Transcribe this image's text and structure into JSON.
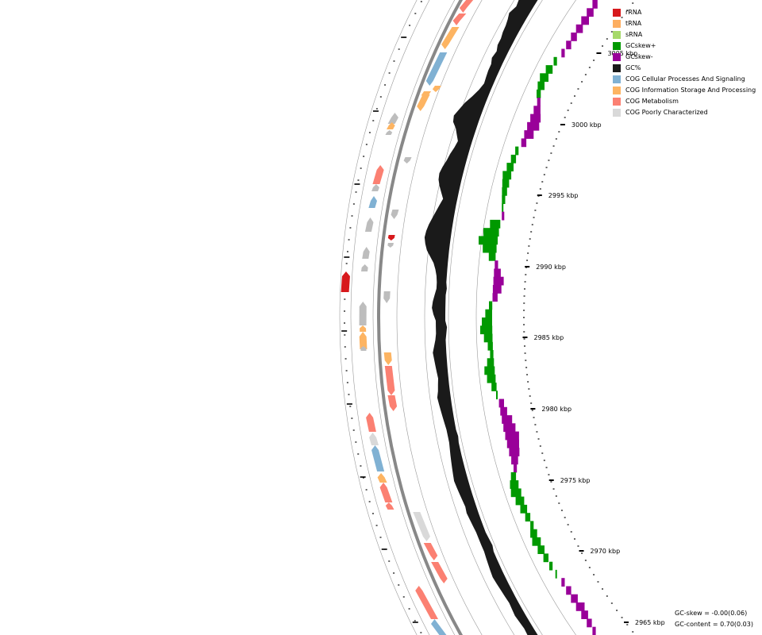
{
  "legend": {
    "items": [
      {
        "label": "rRNA",
        "color": "#d7191c"
      },
      {
        "label": "tRNA",
        "color": "#fdae61"
      },
      {
        "label": "sRNA",
        "color": "#a6d96a"
      },
      {
        "label": "GCskew+",
        "color": "#009900"
      },
      {
        "label": "GCskew-",
        "color": "#990099"
      },
      {
        "label": "GC%",
        "color": "#1a1a1a"
      },
      {
        "label": "COG Cellular Processes And Signaling",
        "color": "#80b1d3"
      },
      {
        "label": "COG Information Storage And Processing",
        "color": "#fdb462"
      },
      {
        "label": "COG Metabolism",
        "color": "#fb8072"
      },
      {
        "label": "COG Poorly Characterized",
        "color": "#d9d9d9"
      }
    ]
  },
  "axis": {
    "ticks": [
      "3005 kbp",
      "3000 kbp",
      "2995 kbp",
      "2990 kbp",
      "2985 kbp",
      "2980 kbp",
      "2975 kbp",
      "2970 kbp",
      "2965 kbp"
    ]
  },
  "stats": {
    "gc_skew": "GC-skew = -0.00(0.06)",
    "gc_content": "GC-content = 0.70(0.03)"
  }
}
